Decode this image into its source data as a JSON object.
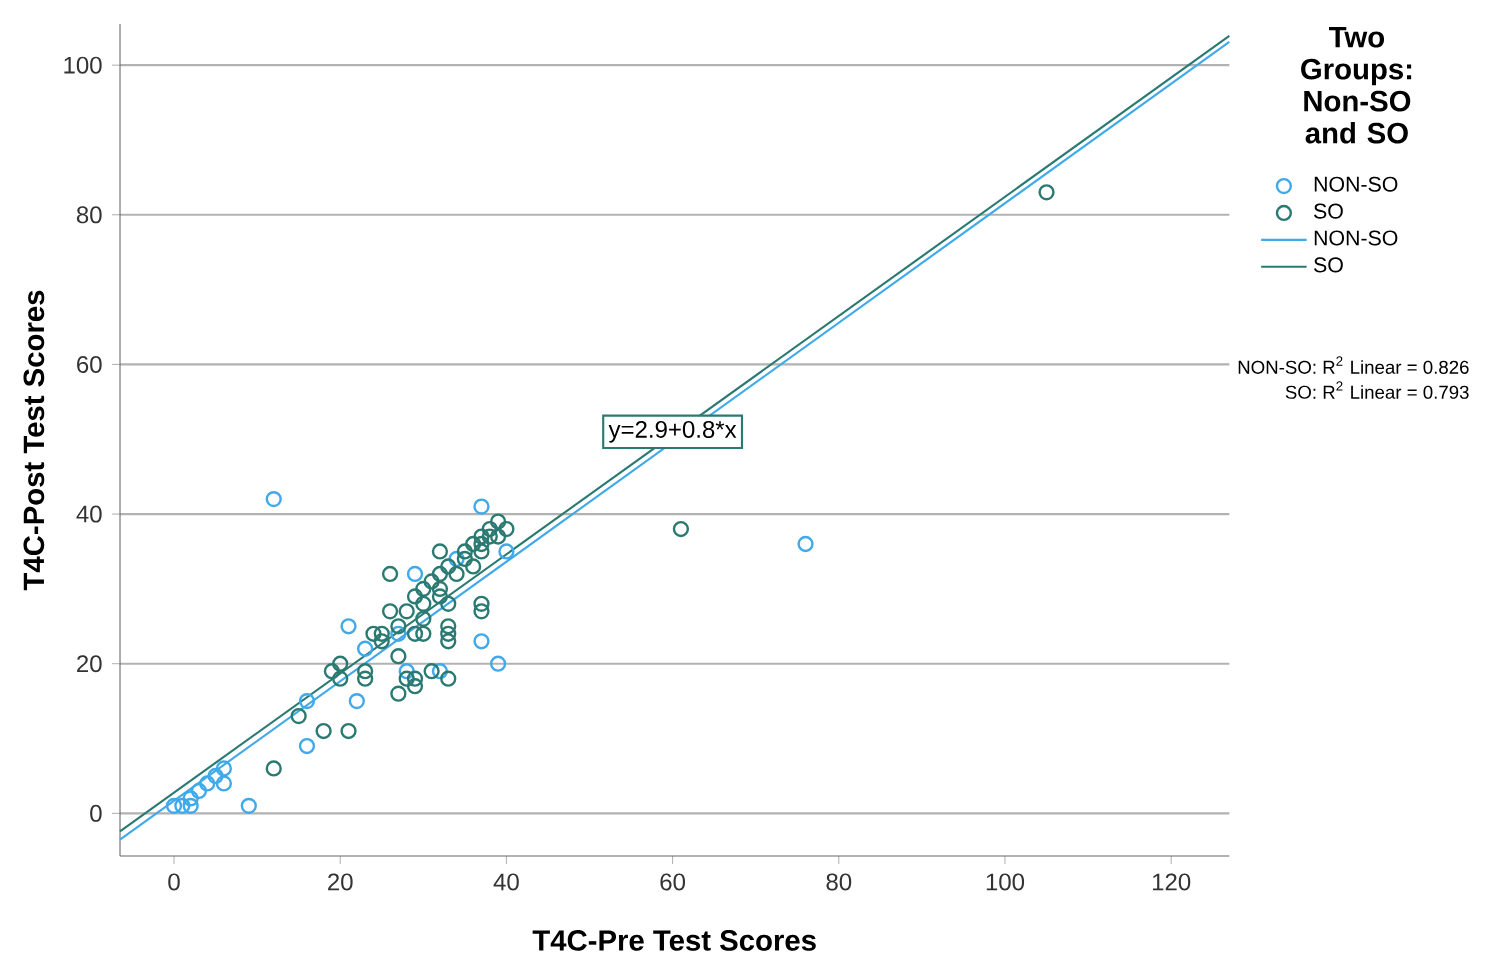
{
  "chart_data": {
    "type": "scatter",
    "xlabel": "T4C-Pre Test Scores",
    "ylabel": "T4C-Post Test Scores",
    "legend_title": "Two Groups: Non-SO and SO",
    "xlim": [
      -6.5,
      127
    ],
    "ylim": [
      -5.7,
      105.5
    ],
    "xticks": [
      0,
      20,
      40,
      60,
      80,
      100,
      120
    ],
    "yticks": [
      0,
      20,
      40,
      60,
      80,
      100
    ],
    "grid": "y",
    "legend": "right",
    "marker": "circle",
    "line_style": "solid",
    "series": [
      {
        "name": "NON-SO",
        "color": "#3fa9ea",
        "x": [
          12,
          37,
          29,
          21,
          23,
          27,
          37,
          39,
          40,
          34,
          22,
          16,
          16,
          9,
          6,
          6,
          5,
          4,
          3,
          2,
          0,
          1,
          2,
          76,
          28,
          32
        ],
        "values": [
          42,
          41,
          32,
          25,
          22,
          24,
          23,
          20,
          35,
          34,
          15,
          15,
          9,
          1,
          6,
          4,
          5,
          4,
          3,
          2,
          1,
          1,
          1,
          36,
          19,
          19
        ]
      },
      {
        "name": "SO",
        "color": "#2b7a72",
        "x": [
          105,
          61,
          12,
          15,
          18,
          21,
          19,
          20,
          20,
          23,
          23,
          24,
          25,
          25,
          26,
          26,
          27,
          27,
          27,
          28,
          28,
          29,
          29,
          29,
          29,
          30,
          30,
          30,
          30,
          31,
          31,
          32,
          32,
          32,
          32,
          33,
          33,
          33,
          33,
          33,
          33,
          34,
          35,
          35,
          36,
          36,
          37,
          37,
          37,
          37,
          37,
          38,
          38,
          39,
          39,
          40
        ],
        "values": [
          83,
          38,
          6,
          13,
          11,
          11,
          19,
          20,
          18,
          19,
          18,
          24,
          24,
          23,
          32,
          27,
          25,
          21,
          16,
          27,
          18,
          29,
          24,
          18,
          17,
          30,
          28,
          26,
          24,
          31,
          19,
          35,
          32,
          30,
          29,
          33,
          28,
          25,
          24,
          23,
          18,
          32,
          35,
          34,
          36,
          33,
          37,
          36,
          35,
          28,
          27,
          38,
          37,
          39,
          37,
          38
        ]
      },
      {
        "name": "NON-SO",
        "type": "line",
        "marker": "none",
        "color": "#3fa9ea",
        "x": [
          -6.5,
          127
        ],
        "values": [
          -3.5,
          103.1
        ]
      },
      {
        "name": "SO",
        "type": "line",
        "marker": "none",
        "color": "#2b7a72",
        "x": [
          -6.5,
          127
        ],
        "values": [
          -2.4,
          103.9
        ]
      }
    ],
    "annotations": [
      {
        "text": "y=2.9+0.8*x",
        "x": 60,
        "y": 51
      },
      "NON-SO: R$^{2}$ Linear = 0.826",
      "SO: R$^{2}$ Linear = 0.793"
    ]
  }
}
